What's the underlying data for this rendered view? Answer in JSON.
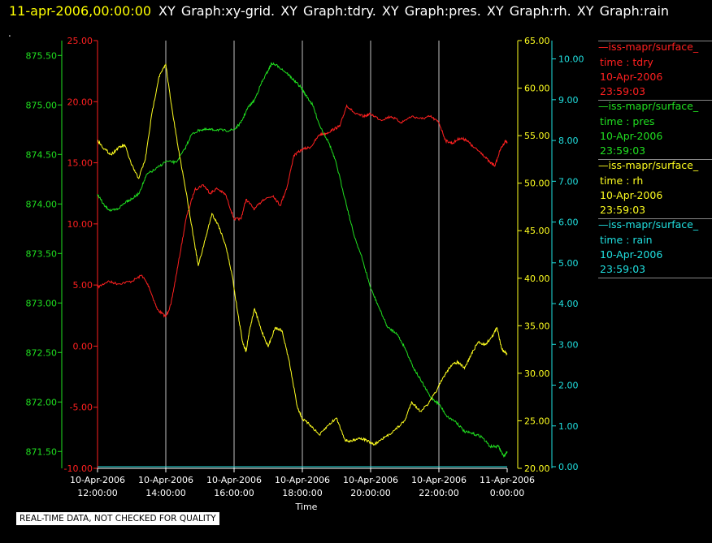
{
  "title": {
    "time": "11-apr-2006,00:00:00",
    "graphs": "XY Graph:xy-grid.  XY Graph:tdry.  XY Graph:pres.  XY Graph:rh.  XY Graph:rain"
  },
  "dot": ".",
  "disclaimer": "REAL-TIME DATA, NOT CHECKED FOR QUALITY",
  "colors": {
    "tdry": "#ff2020",
    "pres": "#20e020",
    "rh": "#ffff20",
    "rain": "#20e0e0",
    "grid": "#c0c0c0"
  },
  "legend": [
    {
      "name": "iss-mapr/surface_",
      "var": "time : tdry",
      "date": "10-Apr-2006",
      "time": "23:59:03",
      "color": "#ff2020"
    },
    {
      "name": "iss-mapr/surface_",
      "var": "time : pres",
      "date": "10-Apr-2006",
      "time": "23:59:03",
      "color": "#20e020"
    },
    {
      "name": "iss-mapr/surface_",
      "var": "time : rh",
      "date": "10-Apr-2006",
      "time": "23:59:03",
      "color": "#ffff20"
    },
    {
      "name": "iss-mapr/surface_",
      "var": "time : rain",
      "date": "10-Apr-2006",
      "time": "23:59:03",
      "color": "#20e0e0"
    }
  ],
  "chart_data": {
    "type": "line",
    "xlabel": "Time",
    "x_range_hours": [
      12,
      24
    ],
    "x_ticks": [
      {
        "h": 12,
        "date": "10-Apr-2006",
        "time": "12:00:00"
      },
      {
        "h": 14,
        "date": "10-Apr-2006",
        "time": "14:00:00"
      },
      {
        "h": 16,
        "date": "10-Apr-2006",
        "time": "16:00:00"
      },
      {
        "h": 18,
        "date": "10-Apr-2006",
        "time": "18:00:00"
      },
      {
        "h": 20,
        "date": "10-Apr-2006",
        "time": "20:00:00"
      },
      {
        "h": 22,
        "date": "10-Apr-2006",
        "time": "22:00:00"
      },
      {
        "h": 24,
        "date": "11-Apr-2006",
        "time": "0:00:00"
      }
    ],
    "axes": {
      "pres": {
        "range": [
          871.33,
          875.65
        ],
        "ticks": [
          "871.50",
          "872.00",
          "872.50",
          "873.00",
          "873.50",
          "874.00",
          "874.50",
          "875.00",
          "875.50"
        ]
      },
      "tdry": {
        "range": [
          -10,
          25
        ],
        "ticks": [
          "-10.00",
          "-5.00",
          "0.00",
          "5.00",
          "10.00",
          "15.00",
          "20.00",
          "25.00"
        ]
      },
      "rh": {
        "range": [
          20,
          65
        ],
        "ticks": [
          "20.00",
          "25.00",
          "30.00",
          "35.00",
          "40.00",
          "45.00",
          "50.00",
          "55.00",
          "60.00",
          "65.00"
        ]
      },
      "rain": {
        "range": [
          -0.04,
          10.45
        ],
        "ticks": [
          "0.00",
          "1.00",
          "2.00",
          "3.00",
          "4.00",
          "5.00",
          "6.00",
          "7.00",
          "8.00",
          "9.00",
          "10.00"
        ]
      }
    },
    "grid": true,
    "series": [
      {
        "name": "tdry",
        "points": [
          [
            12.0,
            4.8
          ],
          [
            12.3,
            5.3
          ],
          [
            12.6,
            5.1
          ],
          [
            13.0,
            5.3
          ],
          [
            13.3,
            5.8
          ],
          [
            13.5,
            4.9
          ],
          [
            13.75,
            3.0
          ],
          [
            14.0,
            2.4
          ],
          [
            14.15,
            3.4
          ],
          [
            14.35,
            6.5
          ],
          [
            14.6,
            10.5
          ],
          [
            14.85,
            12.8
          ],
          [
            15.1,
            13.2
          ],
          [
            15.3,
            12.5
          ],
          [
            15.5,
            12.9
          ],
          [
            15.75,
            12.4
          ],
          [
            16.0,
            10.4
          ],
          [
            16.2,
            10.4
          ],
          [
            16.35,
            12.0
          ],
          [
            16.6,
            11.2
          ],
          [
            16.85,
            12.0
          ],
          [
            17.15,
            12.3
          ],
          [
            17.35,
            11.5
          ],
          [
            17.55,
            13.0
          ],
          [
            17.75,
            15.6
          ],
          [
            18.0,
            16.1
          ],
          [
            18.25,
            16.3
          ],
          [
            18.5,
            17.3
          ],
          [
            18.7,
            17.4
          ],
          [
            18.95,
            17.8
          ],
          [
            19.1,
            18.0
          ],
          [
            19.3,
            19.7
          ],
          [
            19.55,
            19.0
          ],
          [
            19.8,
            18.8
          ],
          [
            20.0,
            19.0
          ],
          [
            20.3,
            18.5
          ],
          [
            20.6,
            18.8
          ],
          [
            20.9,
            18.3
          ],
          [
            21.2,
            18.8
          ],
          [
            21.5,
            18.6
          ],
          [
            21.75,
            18.8
          ],
          [
            22.0,
            18.3
          ],
          [
            22.2,
            16.8
          ],
          [
            22.4,
            16.6
          ],
          [
            22.6,
            17.0
          ],
          [
            22.8,
            16.9
          ],
          [
            23.0,
            16.3
          ],
          [
            23.25,
            15.8
          ],
          [
            23.5,
            15.0
          ],
          [
            23.65,
            14.8
          ],
          [
            23.8,
            16.1
          ],
          [
            23.95,
            16.8
          ],
          [
            24.0,
            16.6
          ]
        ]
      },
      {
        "name": "pres",
        "points": [
          [
            12.0,
            874.1
          ],
          [
            12.2,
            873.98
          ],
          [
            12.4,
            873.93
          ],
          [
            12.6,
            873.95
          ],
          [
            12.85,
            874.03
          ],
          [
            13.0,
            874.05
          ],
          [
            13.2,
            874.1
          ],
          [
            13.45,
            874.3
          ],
          [
            13.7,
            874.35
          ],
          [
            14.0,
            874.43
          ],
          [
            14.3,
            874.42
          ],
          [
            14.55,
            874.55
          ],
          [
            14.75,
            874.7
          ],
          [
            15.0,
            874.75
          ],
          [
            15.25,
            874.75
          ],
          [
            15.5,
            874.75
          ],
          [
            15.75,
            874.74
          ],
          [
            16.0,
            874.75
          ],
          [
            16.2,
            874.82
          ],
          [
            16.4,
            874.97
          ],
          [
            16.6,
            875.05
          ],
          [
            16.8,
            875.22
          ],
          [
            17.0,
            875.35
          ],
          [
            17.1,
            875.42
          ],
          [
            17.3,
            875.39
          ],
          [
            17.55,
            875.32
          ],
          [
            17.75,
            875.25
          ],
          [
            17.95,
            875.18
          ],
          [
            18.1,
            875.1
          ],
          [
            18.3,
            875.0
          ],
          [
            18.5,
            874.8
          ],
          [
            18.8,
            874.6
          ],
          [
            19.0,
            874.4
          ],
          [
            19.25,
            874.05
          ],
          [
            19.5,
            873.7
          ],
          [
            19.75,
            873.45
          ],
          [
            20.0,
            873.15
          ],
          [
            20.25,
            872.95
          ],
          [
            20.5,
            872.75
          ],
          [
            20.75,
            872.7
          ],
          [
            21.0,
            872.55
          ],
          [
            21.25,
            872.35
          ],
          [
            21.5,
            872.2
          ],
          [
            21.75,
            872.05
          ],
          [
            22.0,
            871.98
          ],
          [
            22.25,
            871.85
          ],
          [
            22.5,
            871.8
          ],
          [
            22.75,
            871.7
          ],
          [
            23.0,
            871.68
          ],
          [
            23.25,
            871.65
          ],
          [
            23.5,
            871.55
          ],
          [
            23.75,
            871.55
          ],
          [
            23.9,
            871.45
          ],
          [
            24.0,
            871.5
          ]
        ]
      },
      {
        "name": "rh",
        "points": [
          [
            12.0,
            54.5
          ],
          [
            12.2,
            53.6
          ],
          [
            12.4,
            53.0
          ],
          [
            12.6,
            53.7
          ],
          [
            12.8,
            54.0
          ],
          [
            13.0,
            51.9
          ],
          [
            13.2,
            50.5
          ],
          [
            13.4,
            52.5
          ],
          [
            13.6,
            57.5
          ],
          [
            13.8,
            61.2
          ],
          [
            14.0,
            62.5
          ],
          [
            14.15,
            58.5
          ],
          [
            14.35,
            54.0
          ],
          [
            14.6,
            49.0
          ],
          [
            14.85,
            43.5
          ],
          [
            14.95,
            41.3
          ],
          [
            15.15,
            44.0
          ],
          [
            15.35,
            46.8
          ],
          [
            15.55,
            45.5
          ],
          [
            15.75,
            43.5
          ],
          [
            15.95,
            40.2
          ],
          [
            16.1,
            36.5
          ],
          [
            16.25,
            33.3
          ],
          [
            16.35,
            32.3
          ],
          [
            16.45,
            34.5
          ],
          [
            16.6,
            36.8
          ],
          [
            16.8,
            34.5
          ],
          [
            17.0,
            32.8
          ],
          [
            17.2,
            34.8
          ],
          [
            17.4,
            34.5
          ],
          [
            17.6,
            31.5
          ],
          [
            17.85,
            26.5
          ],
          [
            18.0,
            25.2
          ],
          [
            18.25,
            24.5
          ],
          [
            18.5,
            23.5
          ],
          [
            18.75,
            24.5
          ],
          [
            19.0,
            25.3
          ],
          [
            19.25,
            23.0
          ],
          [
            19.4,
            22.8
          ],
          [
            19.65,
            23.2
          ],
          [
            19.85,
            23.0
          ],
          [
            20.1,
            22.5
          ],
          [
            20.4,
            23.2
          ],
          [
            20.7,
            24.0
          ],
          [
            21.0,
            25.0
          ],
          [
            21.2,
            27.0
          ],
          [
            21.45,
            26.0
          ],
          [
            21.7,
            26.8
          ],
          [
            21.95,
            28.3
          ],
          [
            22.15,
            29.7
          ],
          [
            22.35,
            30.8
          ],
          [
            22.55,
            31.2
          ],
          [
            22.75,
            30.5
          ],
          [
            22.95,
            32.0
          ],
          [
            23.15,
            33.3
          ],
          [
            23.35,
            33.0
          ],
          [
            23.55,
            33.8
          ],
          [
            23.7,
            34.8
          ],
          [
            23.85,
            32.5
          ],
          [
            24.0,
            32.0
          ]
        ]
      },
      {
        "name": "rain",
        "points": [
          [
            12.0,
            0.0
          ],
          [
            24.0,
            0.0
          ]
        ]
      }
    ]
  }
}
